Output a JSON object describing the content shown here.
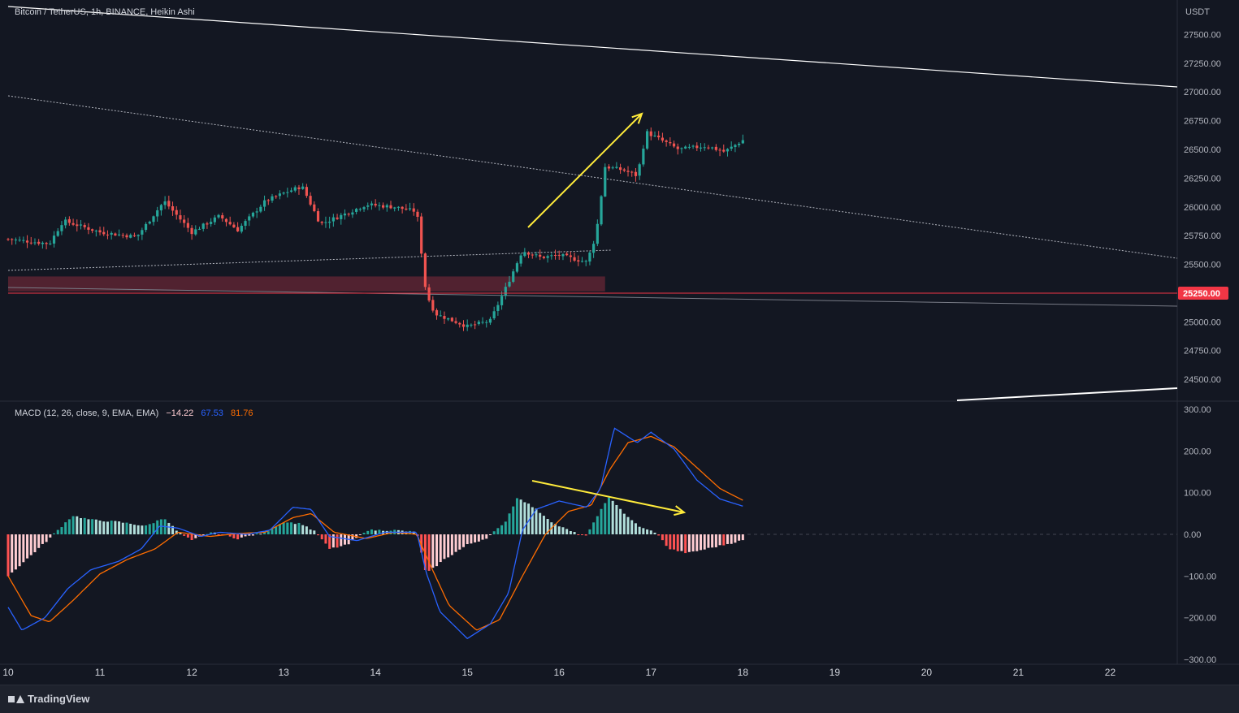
{
  "window": {
    "symbol_title": "Bitcoin / TetherUS, 1h, BINANCE, Heikin Ashi",
    "currency": "USDT",
    "brand": "TradingView"
  },
  "macd_legend": {
    "label": "MACD (12, 26, close, 9, EMA, EMA)",
    "histogram": "−14.22",
    "macd": "67.53",
    "signal": "81.76"
  },
  "colors": {
    "background": "#131722",
    "bull": "#26a69a",
    "bear": "#ef5350",
    "macd_line": "#2962ff",
    "signal_line": "#ff6d00",
    "annotation": "#ffeb3b",
    "trendline": "#ffffff",
    "hline": "#f23645",
    "zone": "#5d2432",
    "hist_up_strong": "#26a69a",
    "hist_up_weak": "#b2dfdb",
    "hist_down_strong": "#ff5252",
    "hist_down_weak": "#ffcdd2"
  },
  "current_price_label": "25250.00",
  "chart_data": [
    {
      "type": "candlestick",
      "style": "Heikin Ashi",
      "y_ticks": [
        "27500.00",
        "27250.00",
        "27000.00",
        "26750.00",
        "26500.00",
        "26250.00",
        "26000.00",
        "25750.00",
        "25500.00",
        "25000.00",
        "24750.00",
        "24500.00"
      ],
      "y_tick_values": [
        27500,
        27250,
        27000,
        26750,
        26500,
        26250,
        26000,
        25750,
        25500,
        25000,
        24750,
        24500
      ],
      "ylim": [
        24310,
        27800
      ],
      "x_ticks": [
        "10",
        "11",
        "12",
        "13",
        "14",
        "15",
        "16",
        "17",
        "18",
        "19",
        "20",
        "21",
        "22"
      ],
      "x_tick_values": [
        10,
        11,
        12,
        13,
        14,
        15,
        16,
        17,
        18,
        19,
        20,
        21,
        22
      ],
      "xlim": [
        10,
        22.73
      ],
      "key_points": [
        {
          "x": 10.0,
          "close": 25720
        },
        {
          "x": 10.45,
          "close": 25680
        },
        {
          "x": 10.6,
          "close": 25880
        },
        {
          "x": 11.0,
          "close": 25780
        },
        {
          "x": 11.4,
          "close": 25740
        },
        {
          "x": 11.7,
          "close": 26050
        },
        {
          "x": 12.0,
          "close": 25780
        },
        {
          "x": 12.3,
          "close": 25920
        },
        {
          "x": 12.5,
          "close": 25800
        },
        {
          "x": 12.8,
          "close": 26050
        },
        {
          "x": 13.0,
          "close": 26120
        },
        {
          "x": 13.2,
          "close": 26180
        },
        {
          "x": 13.4,
          "close": 25850
        },
        {
          "x": 13.7,
          "close": 25950
        },
        {
          "x": 13.9,
          "close": 26020
        },
        {
          "x": 14.2,
          "close": 26000
        },
        {
          "x": 14.45,
          "close": 25960
        },
        {
          "x": 14.55,
          "close": 25250
        },
        {
          "x": 14.65,
          "close": 25070
        },
        {
          "x": 15.0,
          "close": 24960
        },
        {
          "x": 15.25,
          "close": 25010
        },
        {
          "x": 15.45,
          "close": 25350
        },
        {
          "x": 15.6,
          "close": 25620
        },
        {
          "x": 15.8,
          "close": 25560
        },
        {
          "x": 16.0,
          "close": 25580
        },
        {
          "x": 16.3,
          "close": 25520
        },
        {
          "x": 16.4,
          "close": 25750
        },
        {
          "x": 16.5,
          "close": 26350
        },
        {
          "x": 16.7,
          "close": 26320
        },
        {
          "x": 16.85,
          "close": 26270
        },
        {
          "x": 16.95,
          "close": 26650
        },
        {
          "x": 17.3,
          "close": 26500
        },
        {
          "x": 17.6,
          "close": 26530
        },
        {
          "x": 17.8,
          "close": 26480
        },
        {
          "x": 18.0,
          "close": 26580
        }
      ],
      "horizontal_lines": [
        {
          "price": 25250,
          "label": "25250.00"
        }
      ],
      "zones": [
        {
          "from_x": 10.0,
          "to_x": 16.5,
          "low": 25265,
          "high": 25395
        }
      ]
    },
    {
      "type": "macd",
      "y_ticks": [
        "300.00",
        "200.00",
        "100.00",
        "0.00",
        "−100.00",
        "−200.00",
        "−300.00"
      ],
      "y_tick_values": [
        300,
        200,
        100,
        0,
        -100,
        -200,
        -300
      ],
      "ylim": [
        -300,
        300
      ],
      "x_ticks": [
        "10",
        "11",
        "12",
        "13",
        "14",
        "15",
        "16",
        "17",
        "18",
        "19",
        "20",
        "21",
        "22"
      ],
      "x_tick_values": [
        10,
        11,
        12,
        13,
        14,
        15,
        16,
        17,
        18,
        19,
        20,
        21,
        22
      ],
      "xlim": [
        10,
        22.73
      ],
      "macd_points": [
        [
          10.0,
          -175
        ],
        [
          10.15,
          -230
        ],
        [
          10.4,
          -200
        ],
        [
          10.65,
          -130
        ],
        [
          10.9,
          -85
        ],
        [
          11.2,
          -65
        ],
        [
          11.45,
          -35
        ],
        [
          11.65,
          20
        ],
        [
          11.85,
          15
        ],
        [
          12.1,
          -5
        ],
        [
          12.3,
          5
        ],
        [
          12.6,
          0
        ],
        [
          12.85,
          10
        ],
        [
          13.1,
          65
        ],
        [
          13.3,
          60
        ],
        [
          13.5,
          -5
        ],
        [
          13.8,
          -15
        ],
        [
          14.1,
          5
        ],
        [
          14.45,
          5
        ],
        [
          14.55,
          -90
        ],
        [
          14.7,
          -185
        ],
        [
          15.0,
          -250
        ],
        [
          15.25,
          -215
        ],
        [
          15.45,
          -140
        ],
        [
          15.6,
          10
        ],
        [
          15.75,
          60
        ],
        [
          16.0,
          80
        ],
        [
          16.3,
          65
        ],
        [
          16.45,
          110
        ],
        [
          16.6,
          255
        ],
        [
          16.85,
          220
        ],
        [
          17.0,
          245
        ],
        [
          17.25,
          205
        ],
        [
          17.5,
          130
        ],
        [
          17.75,
          85
        ],
        [
          18.0,
          67.53
        ]
      ],
      "signal_points": [
        [
          10.0,
          -100
        ],
        [
          10.25,
          -195
        ],
        [
          10.45,
          -210
        ],
        [
          10.7,
          -160
        ],
        [
          11.0,
          -95
        ],
        [
          11.3,
          -60
        ],
        [
          11.6,
          -35
        ],
        [
          11.85,
          5
        ],
        [
          12.2,
          -5
        ],
        [
          12.5,
          2
        ],
        [
          12.8,
          5
        ],
        [
          13.1,
          40
        ],
        [
          13.3,
          50
        ],
        [
          13.55,
          5
        ],
        [
          13.9,
          -10
        ],
        [
          14.2,
          5
        ],
        [
          14.45,
          0
        ],
        [
          14.6,
          -75
        ],
        [
          14.8,
          -170
        ],
        [
          15.1,
          -230
        ],
        [
          15.35,
          -205
        ],
        [
          15.6,
          -100
        ],
        [
          15.85,
          0
        ],
        [
          16.1,
          55
        ],
        [
          16.35,
          70
        ],
        [
          16.55,
          155
        ],
        [
          16.75,
          220
        ],
        [
          17.0,
          235
        ],
        [
          17.25,
          210
        ],
        [
          17.5,
          160
        ],
        [
          17.75,
          110
        ],
        [
          18.0,
          81.76
        ]
      ],
      "histogram_points": [
        [
          10.0,
          -100
        ],
        [
          10.2,
          -60
        ],
        [
          10.45,
          -10
        ],
        [
          10.7,
          45
        ],
        [
          10.9,
          35
        ],
        [
          11.2,
          30
        ],
        [
          11.5,
          20
        ],
        [
          11.7,
          40
        ],
        [
          11.85,
          5
        ],
        [
          12.0,
          -15
        ],
        [
          12.2,
          5
        ],
        [
          12.5,
          -10
        ],
        [
          12.8,
          5
        ],
        [
          13.0,
          30
        ],
        [
          13.2,
          25
        ],
        [
          13.35,
          5
        ],
        [
          13.5,
          -35
        ],
        [
          13.7,
          -25
        ],
        [
          13.9,
          10
        ],
        [
          14.2,
          10
        ],
        [
          14.45,
          5
        ],
        [
          14.55,
          -95
        ],
        [
          14.75,
          -60
        ],
        [
          15.0,
          -25
        ],
        [
          15.2,
          -10
        ],
        [
          15.4,
          25
        ],
        [
          15.55,
          90
        ],
        [
          15.75,
          60
        ],
        [
          15.95,
          25
        ],
        [
          16.15,
          5
        ],
        [
          16.3,
          -5
        ],
        [
          16.4,
          40
        ],
        [
          16.55,
          90
        ],
        [
          16.75,
          40
        ],
        [
          16.9,
          15
        ],
        [
          17.05,
          5
        ],
        [
          17.2,
          -35
        ],
        [
          17.4,
          -45
        ],
        [
          17.6,
          -35
        ],
        [
          17.8,
          -25
        ],
        [
          18.0,
          -14.22
        ]
      ]
    }
  ]
}
